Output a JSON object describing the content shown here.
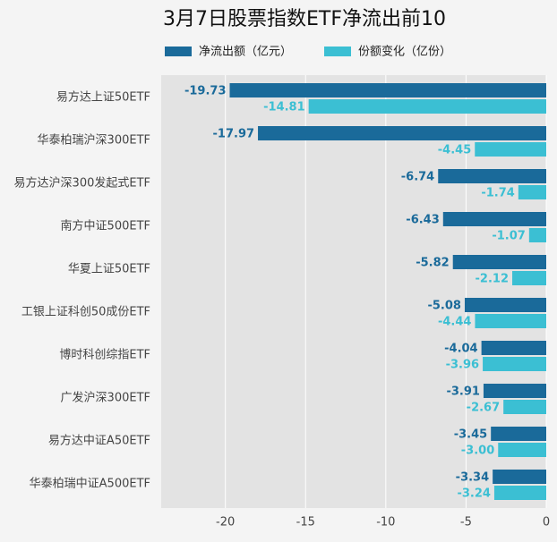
{
  "chart_data": {
    "type": "bar",
    "orientation": "horizontal",
    "title": "3月7日股票指数ETF净流出前10",
    "categories": [
      "易方达上证50ETF",
      "华泰柏瑞沪深300ETF",
      "易方达沪深300发起式ETF",
      "南方中证500ETF",
      "华夏上证50ETF",
      "工银上证科创50成份ETF",
      "博时科创综指ETF",
      "广发沪深300ETF",
      "易方达中证A50ETF",
      "华泰柏瑞中证A500ETF"
    ],
    "series": [
      {
        "name": "净流出额（亿元）",
        "color": "#1a6a9a",
        "values": [
          -19.73,
          -17.97,
          -6.74,
          -6.43,
          -5.82,
          -5.08,
          -4.04,
          -3.91,
          -3.45,
          -3.34
        ],
        "value_labels": [
          "-19.73",
          "-17.97",
          "-6.74",
          "-6.43",
          "-5.82",
          "-5.08",
          "-4.04",
          "-3.91",
          "-3.45",
          "-3.34"
        ]
      },
      {
        "name": "份额变化（亿份）",
        "color": "#3bbfd3",
        "values": [
          -14.81,
          -4.45,
          -1.74,
          -1.07,
          -2.12,
          -4.44,
          -3.96,
          -2.67,
          -3.0,
          -3.24
        ],
        "value_labels": [
          "-14.81",
          "-4.45",
          "-1.74",
          "-1.07",
          "-2.12",
          "-4.44",
          "-3.96",
          "-2.67",
          "-3.00",
          "-3.24"
        ]
      }
    ],
    "xlim": [
      -24,
      0
    ],
    "xticks": [
      -20,
      -15,
      -10,
      -5,
      0
    ],
    "grid": true
  }
}
